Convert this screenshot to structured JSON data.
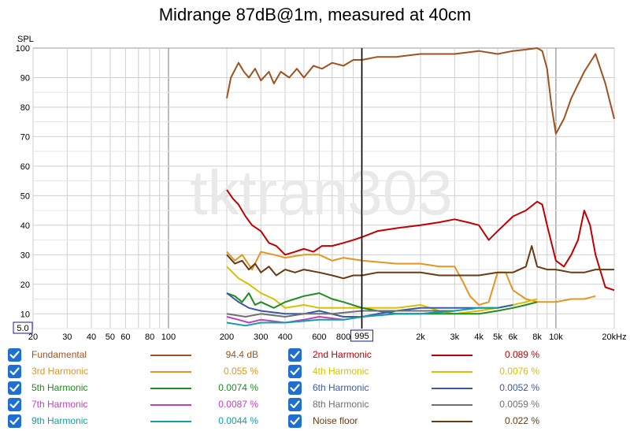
{
  "chart_data": {
    "type": "line",
    "title": "Midrange 87dB@1m, measured at 40cm",
    "ylabel": "SPL",
    "xunit": "Hz",
    "xscale": "log",
    "xlim": [
      20,
      20000
    ],
    "ylim": [
      5,
      100
    ],
    "grid": true,
    "watermark": "tktran303",
    "cursor": {
      "x": 995,
      "label": "995"
    },
    "x_ticks": [
      {
        "v": 20,
        "label": "20"
      },
      {
        "v": 30,
        "label": "30"
      },
      {
        "v": 40,
        "label": "40"
      },
      {
        "v": 50,
        "label": "50"
      },
      {
        "v": 60,
        "label": "60"
      },
      {
        "v": 80,
        "label": "80"
      },
      {
        "v": 100,
        "label": "100"
      },
      {
        "v": 200,
        "label": "200"
      },
      {
        "v": 300,
        "label": "300"
      },
      {
        "v": 400,
        "label": "400"
      },
      {
        "v": 600,
        "label": "600"
      },
      {
        "v": 800,
        "label": "800"
      },
      {
        "v": 2000,
        "label": "2k"
      },
      {
        "v": 3000,
        "label": "3k"
      },
      {
        "v": 4000,
        "label": "4k"
      },
      {
        "v": 5000,
        "label": "5k"
      },
      {
        "v": 6000,
        "label": "6k"
      },
      {
        "v": 8000,
        "label": "8k"
      },
      {
        "v": 10000,
        "label": "10k"
      },
      {
        "v": 20000,
        "label": "20kHz"
      }
    ],
    "y_ticks": [
      {
        "v": 100,
        "label": "100"
      },
      {
        "v": 90,
        "label": "90"
      },
      {
        "v": 80,
        "label": "80"
      },
      {
        "v": 70,
        "label": "70"
      },
      {
        "v": 60,
        "label": "60"
      },
      {
        "v": 50,
        "label": "50"
      },
      {
        "v": 40,
        "label": "40"
      },
      {
        "v": 30,
        "label": "30"
      },
      {
        "v": 20,
        "label": "20"
      },
      {
        "v": 10,
        "label": "10"
      }
    ],
    "y_min_label": "5.0",
    "series": [
      {
        "name": "Fundamental",
        "value": "94.4 dB",
        "color": "#a0521e",
        "points": [
          [
            200,
            83
          ],
          [
            210,
            90
          ],
          [
            230,
            95
          ],
          [
            245,
            92
          ],
          [
            260,
            90
          ],
          [
            280,
            93
          ],
          [
            300,
            89
          ],
          [
            330,
            92
          ],
          [
            350,
            88
          ],
          [
            380,
            92
          ],
          [
            420,
            90
          ],
          [
            460,
            93
          ],
          [
            500,
            90
          ],
          [
            560,
            94
          ],
          [
            620,
            93
          ],
          [
            700,
            95
          ],
          [
            800,
            94
          ],
          [
            900,
            96
          ],
          [
            1000,
            96
          ],
          [
            1200,
            97
          ],
          [
            1500,
            97
          ],
          [
            2000,
            98
          ],
          [
            3000,
            98
          ],
          [
            4000,
            99
          ],
          [
            5000,
            98
          ],
          [
            6000,
            99
          ],
          [
            7000,
            99.5
          ],
          [
            8000,
            100
          ],
          [
            8500,
            99
          ],
          [
            9000,
            93
          ],
          [
            9500,
            80
          ],
          [
            10000,
            71
          ],
          [
            11000,
            76
          ],
          [
            12000,
            83
          ],
          [
            14000,
            92
          ],
          [
            16000,
            98
          ],
          [
            18000,
            88
          ],
          [
            20000,
            76
          ]
        ]
      },
      {
        "name": "2nd Harmonic",
        "value": "0.089 %",
        "color": "#c00000",
        "points": [
          [
            200,
            52
          ],
          [
            215,
            49
          ],
          [
            230,
            47
          ],
          [
            250,
            43
          ],
          [
            270,
            40
          ],
          [
            300,
            38
          ],
          [
            330,
            34
          ],
          [
            360,
            33
          ],
          [
            400,
            30
          ],
          [
            450,
            31
          ],
          [
            500,
            32
          ],
          [
            560,
            31
          ],
          [
            620,
            33
          ],
          [
            700,
            33
          ],
          [
            800,
            34
          ],
          [
            900,
            35
          ],
          [
            1000,
            36
          ],
          [
            1200,
            38
          ],
          [
            1500,
            39
          ],
          [
            2000,
            40
          ],
          [
            2500,
            41
          ],
          [
            3000,
            42
          ],
          [
            3500,
            41
          ],
          [
            4000,
            40
          ],
          [
            4500,
            35
          ],
          [
            5000,
            38
          ],
          [
            6000,
            43
          ],
          [
            7000,
            45
          ],
          [
            8000,
            48
          ],
          [
            8500,
            47
          ],
          [
            9000,
            40
          ],
          [
            10000,
            28
          ],
          [
            11000,
            26
          ],
          [
            12000,
            30
          ],
          [
            13000,
            35
          ],
          [
            14000,
            45
          ],
          [
            15000,
            40
          ],
          [
            16000,
            30
          ],
          [
            18000,
            19
          ],
          [
            20000,
            18
          ]
        ]
      },
      {
        "name": "3rd Harmonic",
        "value": "0.055 %",
        "color": "#e6951e",
        "points": [
          [
            200,
            31
          ],
          [
            220,
            28
          ],
          [
            240,
            30
          ],
          [
            270,
            25
          ],
          [
            300,
            31
          ],
          [
            350,
            30
          ],
          [
            400,
            29
          ],
          [
            500,
            30
          ],
          [
            600,
            30
          ],
          [
            700,
            28
          ],
          [
            800,
            29
          ],
          [
            1000,
            28
          ],
          [
            1500,
            27
          ],
          [
            2000,
            27
          ],
          [
            2500,
            26
          ],
          [
            3000,
            26
          ],
          [
            3300,
            21
          ],
          [
            3600,
            16
          ],
          [
            4000,
            13
          ],
          [
            4500,
            14
          ],
          [
            5000,
            24
          ],
          [
            5500,
            24
          ],
          [
            6000,
            18
          ],
          [
            7000,
            15
          ],
          [
            8000,
            14
          ],
          [
            10000,
            14
          ],
          [
            12000,
            15
          ],
          [
            14000,
            15
          ],
          [
            16000,
            16
          ]
        ]
      },
      {
        "name": "4th Harmonic",
        "value": "0.0076 %",
        "color": "#d8c000",
        "points": [
          [
            200,
            26
          ],
          [
            230,
            22
          ],
          [
            260,
            20
          ],
          [
            300,
            17
          ],
          [
            350,
            15
          ],
          [
            400,
            12
          ],
          [
            500,
            13
          ],
          [
            600,
            12
          ],
          [
            800,
            12
          ],
          [
            1000,
            12
          ],
          [
            1500,
            12
          ],
          [
            2000,
            13
          ],
          [
            2500,
            11
          ],
          [
            3000,
            10
          ],
          [
            4000,
            11
          ],
          [
            5000,
            12
          ],
          [
            6000,
            13
          ],
          [
            7000,
            14
          ],
          [
            8000,
            15
          ]
        ]
      },
      {
        "name": "5th Harmonic",
        "value": "0.0074 %",
        "color": "#1f8c1f",
        "points": [
          [
            200,
            17
          ],
          [
            220,
            16
          ],
          [
            240,
            14
          ],
          [
            260,
            17
          ],
          [
            280,
            13
          ],
          [
            300,
            14
          ],
          [
            350,
            12
          ],
          [
            400,
            14
          ],
          [
            500,
            16
          ],
          [
            600,
            17
          ],
          [
            700,
            15
          ],
          [
            800,
            14
          ],
          [
            1000,
            12
          ],
          [
            1200,
            11
          ],
          [
            1500,
            10
          ],
          [
            2000,
            10
          ],
          [
            3000,
            10
          ],
          [
            4000,
            10
          ],
          [
            5000,
            11
          ],
          [
            6000,
            12
          ],
          [
            7000,
            13
          ],
          [
            8000,
            14
          ]
        ]
      },
      {
        "name": "6th Harmonic",
        "value": "0.0052 %",
        "color": "#3a5aa8",
        "points": [
          [
            200,
            17
          ],
          [
            230,
            14
          ],
          [
            260,
            12
          ],
          [
            300,
            11
          ],
          [
            400,
            10
          ],
          [
            500,
            10
          ],
          [
            600,
            11
          ],
          [
            800,
            9
          ],
          [
            1000,
            9
          ],
          [
            1200,
            10
          ],
          [
            1500,
            11
          ],
          [
            2000,
            12
          ],
          [
            3000,
            12
          ],
          [
            4000,
            12
          ],
          [
            5000,
            12
          ],
          [
            6000,
            13
          ]
        ]
      },
      {
        "name": "7th Harmonic",
        "value": "0.0087 %",
        "color": "#c040c0",
        "points": [
          [
            200,
            9
          ],
          [
            230,
            8
          ],
          [
            260,
            7
          ],
          [
            300,
            8
          ],
          [
            400,
            7
          ],
          [
            500,
            8
          ],
          [
            600,
            9
          ],
          [
            800,
            8
          ],
          [
            1000,
            9
          ],
          [
            1500,
            10
          ],
          [
            2000,
            10
          ],
          [
            3000,
            11
          ]
        ]
      },
      {
        "name": "8th Harmonic",
        "value": "0.0059 %",
        "color": "#707070",
        "points": [
          [
            200,
            10
          ],
          [
            250,
            9
          ],
          [
            300,
            10
          ],
          [
            400,
            9
          ],
          [
            500,
            10
          ],
          [
            700,
            10
          ],
          [
            1000,
            11
          ],
          [
            1500,
            11
          ],
          [
            2000,
            11
          ],
          [
            3000,
            11
          ]
        ]
      },
      {
        "name": "9th Harmonic",
        "value": "0.0044 %",
        "color": "#10a0a8",
        "points": [
          [
            200,
            7
          ],
          [
            250,
            6
          ],
          [
            300,
            7
          ],
          [
            400,
            7
          ],
          [
            600,
            8
          ],
          [
            800,
            8
          ],
          [
            1000,
            9
          ],
          [
            1500,
            10
          ],
          [
            2000,
            10
          ],
          [
            3000,
            11
          ],
          [
            4000,
            12
          ],
          [
            5000,
            12
          ]
        ]
      },
      {
        "name": "Noise floor",
        "value": "0.022 %",
        "color": "#6b3a10",
        "points": [
          [
            200,
            30
          ],
          [
            220,
            27
          ],
          [
            240,
            28
          ],
          [
            260,
            25
          ],
          [
            280,
            27
          ],
          [
            300,
            24
          ],
          [
            330,
            26
          ],
          [
            360,
            23
          ],
          [
            400,
            25
          ],
          [
            450,
            24
          ],
          [
            500,
            25
          ],
          [
            600,
            24
          ],
          [
            700,
            23
          ],
          [
            800,
            22
          ],
          [
            900,
            23
          ],
          [
            1000,
            23
          ],
          [
            1200,
            24
          ],
          [
            1500,
            24
          ],
          [
            2000,
            24
          ],
          [
            2500,
            23
          ],
          [
            3000,
            23
          ],
          [
            3500,
            23
          ],
          [
            4000,
            23
          ],
          [
            5000,
            24
          ],
          [
            6000,
            24
          ],
          [
            7000,
            26
          ],
          [
            7500,
            33
          ],
          [
            8000,
            26
          ],
          [
            9000,
            25
          ],
          [
            10000,
            25
          ],
          [
            12000,
            24
          ],
          [
            14000,
            24
          ],
          [
            16000,
            25
          ],
          [
            18000,
            25
          ],
          [
            20000,
            25
          ]
        ]
      }
    ]
  }
}
